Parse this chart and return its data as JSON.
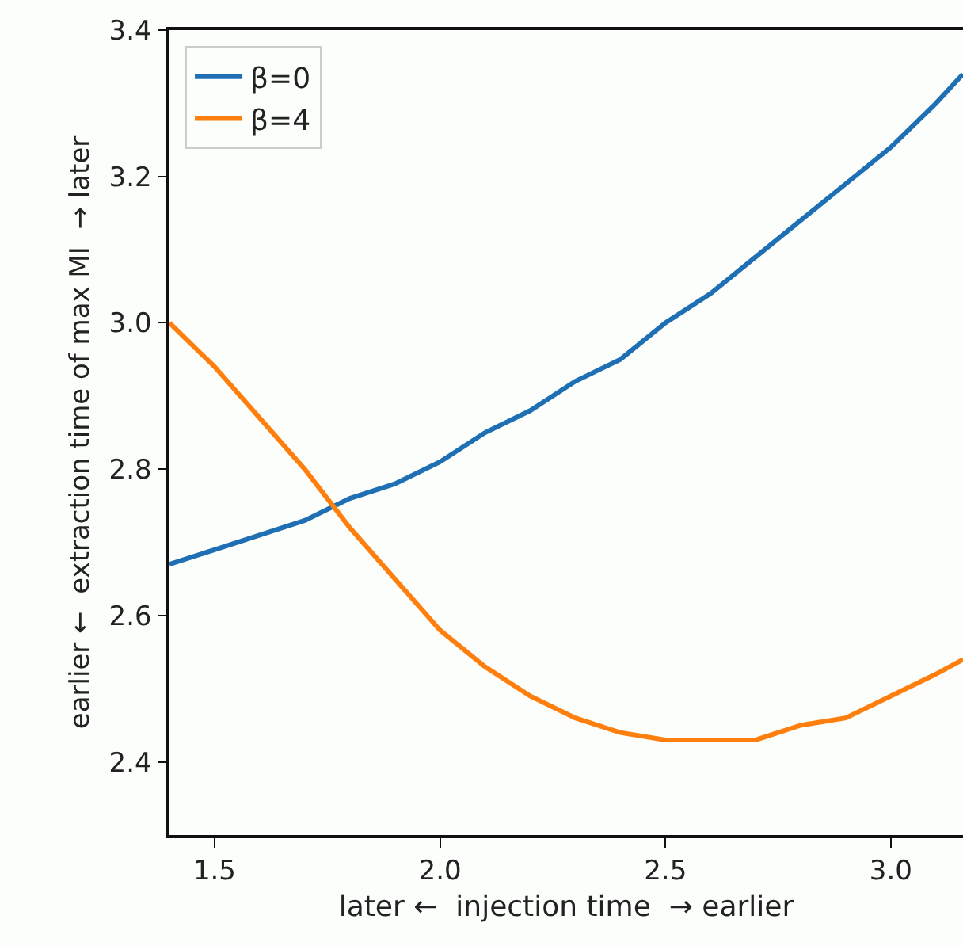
{
  "chart_data": {
    "type": "line",
    "xlabel": "later ←  injection time  → earlier",
    "ylabel": "earlier ←  extraction time of max MI  → later",
    "xlim": [
      1.4,
      3.16
    ],
    "xticks": [
      1.5,
      {
        "value": 2,
        "label": "2.0"
      },
      2.5,
      {
        "value": 3,
        "label": "3.0"
      }
    ],
    "ylim": [
      2.3,
      3.4
    ],
    "yticks": [
      2.4,
      2.6,
      2.8,
      {
        "value": 3,
        "label": "3.0"
      },
      3.2,
      3.4
    ],
    "x": [
      1.4,
      1.5,
      1.6,
      1.7,
      1.8,
      1.9,
      2.0,
      2.1,
      2.2,
      2.3,
      2.4,
      2.5,
      2.6,
      2.7,
      2.8,
      2.9,
      3.0,
      3.1,
      3.16
    ],
    "series": [
      {
        "name": "β=0",
        "color": "#1f6fb4",
        "values": [
          2.67,
          2.69,
          2.71,
          2.73,
          2.76,
          2.78,
          2.81,
          2.85,
          2.88,
          2.92,
          2.95,
          3.0,
          3.04,
          3.09,
          3.14,
          3.19,
          3.24,
          3.3,
          3.34
        ]
      },
      {
        "name": "β=4",
        "color": "#ff7f0e",
        "values": [
          3.0,
          2.94,
          2.87,
          2.8,
          2.72,
          2.65,
          2.58,
          2.53,
          2.49,
          2.46,
          2.44,
          2.43,
          2.43,
          2.43,
          2.45,
          2.46,
          2.49,
          2.52,
          2.54
        ]
      }
    ],
    "grid": false,
    "legend": "top left",
    "marker": "none",
    "line_style": "solid"
  }
}
